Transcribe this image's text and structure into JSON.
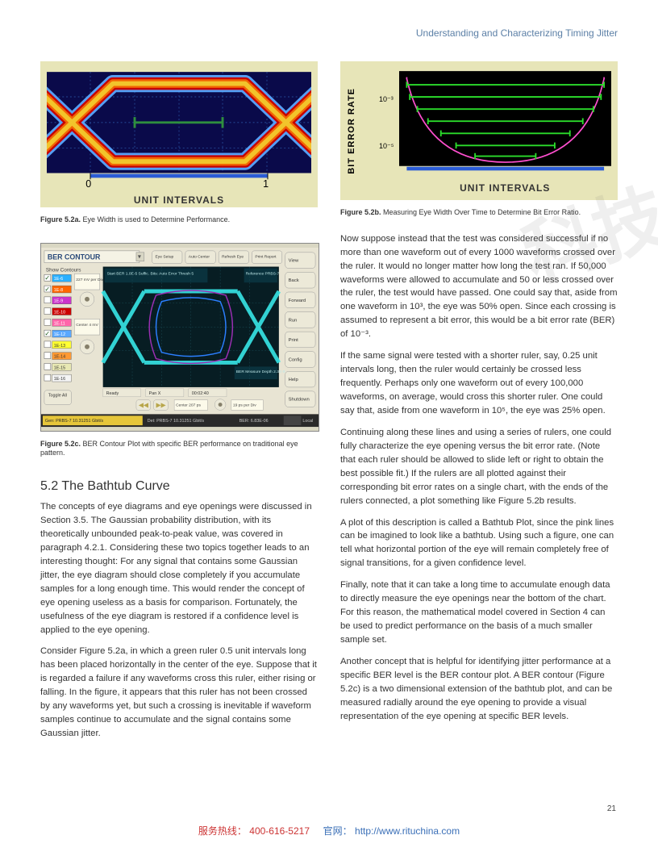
{
  "header": {
    "title": "Understanding and Characterizing Timing Jitter"
  },
  "page_number": "21",
  "watermark": "科技",
  "footer": {
    "hotline_label": "服务热线：",
    "hotline_num": "400-616-5217",
    "site_label": "官网：",
    "site_url": "http://www.rituchina.com"
  },
  "figures": {
    "a": {
      "label": "Figure 5.2a.",
      "caption": "Eye Width is used to Determine Performance.",
      "axis": "UNIT INTERVALS",
      "tick0": "0",
      "tick1": "1",
      "bg": "#e7e5b8",
      "scope_bg": "#0a0a4a",
      "grid_color": "#2e5fb0",
      "ruler_color": "#2f8f3f",
      "trace_colors": [
        "#ffcf2a",
        "#ff6a00",
        "#d00000",
        "#5aa8ff"
      ]
    },
    "b": {
      "label": "Figure 5.2b.",
      "caption": "Measuring Eye Width Over Time to Determine Bit Error Ratio.",
      "y_label": "BIT ERROR RATE",
      "axis": "UNIT INTERVALS",
      "y_ticks": [
        "10⁻³",
        "10⁻⁵"
      ],
      "bg": "#e7e5b8",
      "plot_bg": "#000000",
      "curve_color": "#ff4fcf",
      "level_color": "#2bdc2b"
    },
    "c": {
      "label": "Figure 5.2c.",
      "caption": "BER Contour Plot with specific BER performance on traditional eye pattern.",
      "panel_bg": "#e8e4d3",
      "scope_bg": "#071d23",
      "eye_color": "#37e7e7",
      "mask_color": "#9b2fb3",
      "title": "BER CONTOUR",
      "section": "Show Contours",
      "toolbar": [
        "Eye Setup",
        "Auto Center",
        "Refresh Eye",
        "Print Report"
      ],
      "right_buttons": [
        "View",
        "Back",
        "Forward",
        "Run",
        "Print",
        "Config",
        "Help",
        "Shutdown"
      ],
      "toggle": "Toggle All",
      "rows": [
        {
          "color": "#2bb0ff",
          "v": "1E-6",
          "on": true
        },
        {
          "color": "#ff6600",
          "v": "1E-8",
          "on": true
        },
        {
          "color": "#cc33cc",
          "v": "1E-9",
          "on": false
        },
        {
          "color": "#cc0000",
          "v": "1E-10",
          "on": false
        },
        {
          "color": "#ff66aa",
          "v": "1E-11",
          "on": false
        },
        {
          "color": "#5aa8ff",
          "v": "1E-12",
          "on": true
        },
        {
          "color": "#ffff33",
          "v": "1E-13",
          "on": false
        },
        {
          "color": "#ff9933",
          "v": "1E-14",
          "on": false
        },
        {
          "color": "#e8e8b3",
          "v": "1E-15",
          "on": false
        },
        {
          "color": "#f5f5f5",
          "v": "1E-16",
          "on": false
        }
      ],
      "lbox_top": "227 mV per Div",
      "lbox_bot": "Center 4 mV",
      "scope_top_l": "Start BER 1.0E-5  Suffic. Bits: Auto  Error Thresh 5",
      "scope_top_r": "Reference PRBS-7",
      "scope_bot_r": "BER Measure Depth 2.3E-9",
      "ready": "Ready",
      "panx": "Pan X",
      "time": "00:02:40",
      "center_ps": "Center 207 ps",
      "perdiv": "19 ps per Div",
      "status_gen": "Gen: PRBS-7 10.31251 Gbit/s",
      "status_det": "Det: PRBS-7 10.31251 Gbit/s",
      "status_ber": "BER: 6.83E-06",
      "local": "Local"
    }
  },
  "section": {
    "title": "5.2 The Bathtub Curve",
    "left_paras": [
      "The concepts of eye diagrams and eye openings were discussed in Section 3.5. The Gaussian probability distribution, with its theoretically unbounded peak-to-peak value, was covered in paragraph 4.2.1. Considering these two topics together leads to an interesting thought: For any signal that contains some Gaussian jitter, the eye diagram should close completely if you accumulate samples for a long enough time. This would render the concept of eye opening useless as a basis for comparison. Fortunately, the usefulness of the eye diagram is restored if a confidence level is applied to the eye opening.",
      "Consider Figure 5.2a, in which a green ruler 0.5 unit intervals long has been placed horizontally in the center of the eye. Suppose that it is regarded a failure if any waveforms cross this ruler, either rising or falling. In the figure, it appears that this ruler has not been crossed by any waveforms yet, but such a crossing is inevitable if waveform samples continue to accumulate and the signal contains some Gaussian jitter."
    ],
    "right_paras": [
      "Now suppose instead that the test was considered successful if no more than one waveform out of every 1000 waveforms crossed over the ruler. It would no longer matter how long the test ran. If 50,000 waveforms were allowed to accumulate and 50 or less crossed over the ruler, the test would have passed. One could say that, aside from one waveform in 10³, the eye was 50% open. Since each crossing is assumed to represent a bit error, this would be a bit error rate (BER) of 10⁻³.",
      "If the same signal were tested with a shorter ruler, say, 0.25 unit intervals long, then the ruler would certainly be crossed less frequently. Perhaps only one waveform out of every 100,000 waveforms, on average, would cross this shorter ruler. One could say that, aside from one waveform in 10⁵, the eye was 25% open.",
      "Continuing along these lines and using a series of rulers, one could fully characterize the eye opening versus the bit error rate. (Note that each ruler should be allowed to slide left or right to obtain the best possible fit.) If the rulers are all plotted against their corresponding bit error rates on a single chart, with the ends of the rulers connected, a plot something like Figure 5.2b results.",
      "A plot of this description is called a Bathtub Plot, since the pink lines can be imagined to look like a bathtub. Using such a figure, one can tell what horizontal portion of the eye will remain completely free of signal transitions, for a given confidence level.",
      "Finally, note that it can take a long time to accumulate enough data to directly measure the eye openings near the bottom of the chart. For this reason, the mathematical model covered in Section 4 can be used to predict performance on the basis of a much smaller sample set.",
      "Another concept that is helpful for identifying jitter performance at a specific BER level is the BER contour plot. A BER contour (Figure 5.2c) is a two dimensional extension of the bathtub plot, and can be measured radially around the eye opening to provide a visual representation of the eye opening at specific BER levels."
    ]
  }
}
